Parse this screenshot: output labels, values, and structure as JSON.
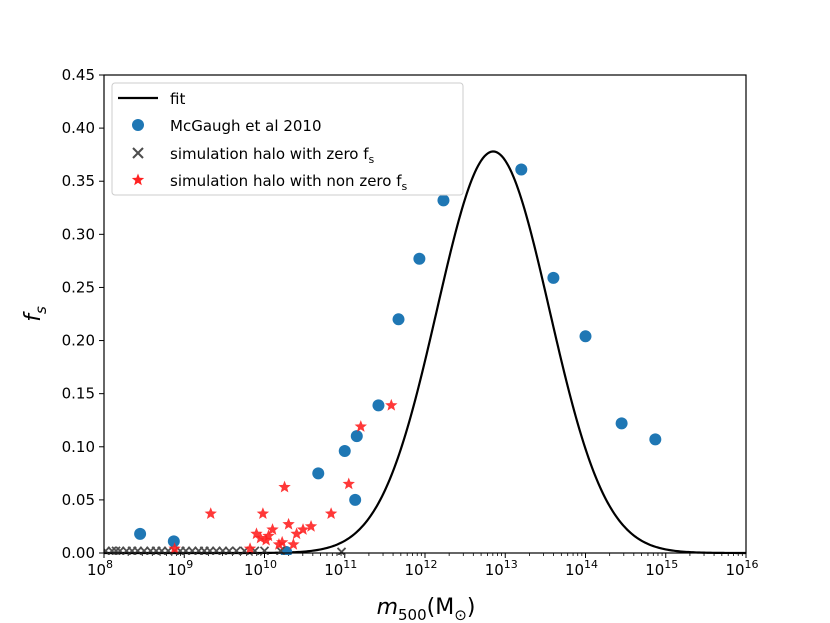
{
  "chart_data": {
    "type": "scatter",
    "title": "",
    "xlabel": {
      "main": "m",
      "sub": "500",
      "unit_open": "(M",
      "unit_sub": "⊙",
      "unit_close": ")"
    },
    "ylabel": {
      "main": "f",
      "sub": "s"
    },
    "xscale": "log",
    "xlim_exp": [
      8,
      16
    ],
    "ylim": [
      0,
      0.45
    ],
    "x_tick_exponents": [
      8,
      9,
      10,
      11,
      12,
      13,
      14,
      15,
      16
    ],
    "x_tick_base": "10",
    "y_ticks": [
      "0.00",
      "0.05",
      "0.10",
      "0.15",
      "0.20",
      "0.25",
      "0.30",
      "0.35",
      "0.40",
      "0.45"
    ],
    "legend_position": "top-left",
    "legend": [
      {
        "key": "fit",
        "label": "fit"
      },
      {
        "key": "mcgaugh",
        "label": "McGaugh et al 2010"
      },
      {
        "key": "zero",
        "label": "simulation halo with zero f",
        "sub": "s"
      },
      {
        "key": "nonzero",
        "label": "simulation halo with non zero f",
        "sub": "s"
      }
    ],
    "colors": {
      "fit": "#000000",
      "mcgaugh": "#1f77b4",
      "zero": "#4d4d4d",
      "nonzero": "#ff2222"
    },
    "series": [
      {
        "key": "fit",
        "name": "fit",
        "kind": "line",
        "model": {
          "peak_log_m": 12.85,
          "peak_fs": 0.378,
          "sigma_dex": 0.7,
          "xmin_log": 8,
          "xmax_log": 16
        }
      },
      {
        "key": "mcgaugh",
        "name": "McGaugh et al 2010",
        "kind": "scatter",
        "marker": "circle",
        "log_m": [
          8.45,
          8.87,
          10.27,
          10.67,
          11.0,
          11.15,
          11.13,
          11.42,
          11.67,
          11.93,
          12.23,
          13.2,
          13.6,
          14.0,
          14.45,
          14.87
        ],
        "fs": [
          0.018,
          0.011,
          0.001,
          0.075,
          0.096,
          0.11,
          0.05,
          0.139,
          0.22,
          0.277,
          0.332,
          0.361,
          0.259,
          0.204,
          0.122,
          0.107
        ]
      },
      {
        "key": "zero",
        "name": "simulation halo with zero f_s",
        "kind": "scatter",
        "marker": "x",
        "log_m": [
          8.02,
          8.1,
          8.15,
          8.2,
          8.28,
          8.35,
          8.42,
          8.5,
          8.58,
          8.65,
          8.72,
          8.8,
          8.88,
          8.95,
          9.02,
          9.1,
          9.18,
          9.25,
          9.32,
          9.4,
          9.48,
          9.56,
          9.65,
          9.75,
          9.88,
          10.0,
          10.2,
          10.96
        ],
        "fs": [
          0.002,
          0.002,
          0.002,
          0.002,
          0.002,
          0.002,
          0.002,
          0.002,
          0.002,
          0.002,
          0.002,
          0.002,
          0.002,
          0.002,
          0.002,
          0.002,
          0.002,
          0.002,
          0.002,
          0.002,
          0.002,
          0.002,
          0.002,
          0.002,
          0.002,
          0.002,
          0.002,
          0.001
        ]
      },
      {
        "key": "nonzero",
        "name": "simulation halo with non zero f_s",
        "kind": "scatter",
        "marker": "star",
        "log_m": [
          8.88,
          9.33,
          9.82,
          9.9,
          9.98,
          10.02,
          10.05,
          10.1,
          10.18,
          10.25,
          10.3,
          10.36,
          10.4,
          10.48,
          10.58,
          10.83,
          11.05,
          11.2,
          11.58,
          10.22,
          9.95
        ],
        "fs": [
          0.004,
          0.037,
          0.004,
          0.018,
          0.037,
          0.012,
          0.016,
          0.022,
          0.008,
          0.062,
          0.027,
          0.008,
          0.018,
          0.022,
          0.025,
          0.037,
          0.065,
          0.119,
          0.139,
          0.01,
          0.014
        ]
      }
    ]
  }
}
